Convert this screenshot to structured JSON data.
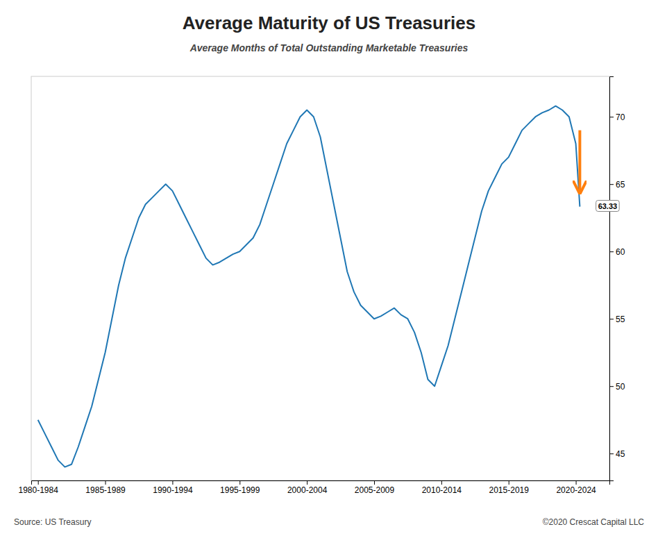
{
  "chart_data": {
    "type": "line",
    "title": "Average Maturity of US Treasuries",
    "subtitle": "Average Months of Total Outstanding Marketable Treasuries",
    "footnotes": [
      "Source: US Treasury",
      "©2020 Crescat Capital LLC"
    ],
    "annotations": [
      {
        "text": "63.33",
        "x": 2021.5,
        "y": 63.33
      }
    ],
    "x": [
      1980,
      1980.5,
      1981,
      1981.5,
      1982,
      1982.5,
      1983,
      1983.5,
      1984,
      1984.5,
      1985,
      1985.5,
      1986,
      1986.5,
      1987,
      1987.5,
      1988,
      1988.5,
      1989,
      1989.5,
      1990,
      1990.5,
      1991,
      1991.5,
      1992,
      1992.5,
      1993,
      1993.5,
      1994,
      1994.5,
      1995,
      1995.5,
      1996,
      1996.5,
      1997,
      1997.5,
      1998,
      1998.5,
      1999,
      1999.5,
      2000,
      2000.5,
      2001,
      2001.5,
      2002,
      2002.5,
      2003,
      2003.5,
      2004,
      2004.5,
      2005,
      2005.5,
      2006,
      2006.5,
      2007,
      2007.5,
      2008,
      2008.5,
      2009,
      2009.5,
      2010,
      2010.5,
      2011,
      2011.5,
      2012,
      2012.5,
      2013,
      2013.5,
      2014,
      2014.5,
      2015,
      2015.5,
      2016,
      2016.5,
      2017,
      2017.5,
      2018,
      2018.5,
      2019,
      2019.5,
      2020,
      2020.3
    ],
    "values": [
      47.5,
      46.5,
      45.5,
      44.5,
      44.0,
      44.2,
      45.5,
      47.0,
      48.5,
      50.5,
      52.5,
      55.0,
      57.5,
      59.5,
      61.0,
      62.5,
      63.5,
      64.0,
      64.5,
      65.0,
      64.5,
      63.5,
      62.5,
      61.5,
      60.5,
      59.5,
      59.0,
      59.2,
      59.5,
      59.8,
      60.0,
      60.5,
      61.0,
      62.0,
      63.5,
      65.0,
      66.5,
      68.0,
      69.0,
      70.0,
      70.5,
      70.0,
      68.5,
      66.0,
      63.5,
      61.0,
      58.5,
      57.0,
      56.0,
      55.5,
      55.0,
      55.2,
      55.5,
      55.8,
      55.3,
      55.0,
      54.0,
      52.5,
      50.5,
      50.0,
      51.5,
      53.0,
      55.0,
      57.0,
      59.0,
      61.0,
      63.0,
      64.5,
      65.5,
      66.5,
      67.0,
      68.0,
      69.0,
      69.5,
      70.0,
      70.3,
      70.5,
      70.8,
      70.5,
      70.0,
      68.0,
      63.33
    ],
    "xlim": [
      1979.5,
      2022.5
    ],
    "xticks": [
      {
        "value": 1980,
        "label": "1980-1984"
      },
      {
        "value": 1985,
        "label": "1985-1989"
      },
      {
        "value": 1990,
        "label": "1990-1994"
      },
      {
        "value": 1995,
        "label": "1995-1999"
      },
      {
        "value": 2000,
        "label": "2000-2004"
      },
      {
        "value": 2005,
        "label": "2005-2009"
      },
      {
        "value": 2010,
        "label": "2010-2014"
      },
      {
        "value": 2015,
        "label": "2015-2019"
      },
      {
        "value": 2020,
        "label": "2020-2024"
      }
    ],
    "ylim": [
      43,
      73
    ],
    "yticks": [
      45,
      50,
      55,
      60,
      65,
      70
    ],
    "grid": false
  }
}
